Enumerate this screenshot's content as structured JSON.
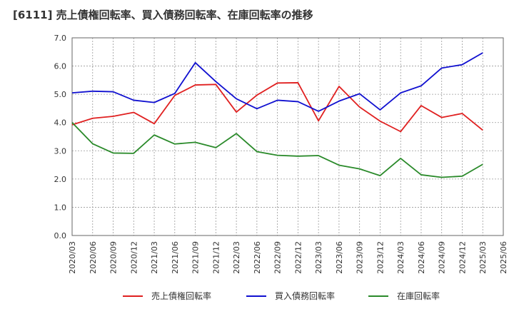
{
  "title": "[6111]  売上債権回転率、買入債務回転率、在庫回転率の推移",
  "chart_data": {
    "type": "line",
    "title": "[6111]  売上債権回転率、買入債務回転率、在庫回転率の推移",
    "xlabel": "",
    "ylabel": "",
    "ylim": [
      0,
      7
    ],
    "yticks": [
      "0.0",
      "1.0",
      "2.0",
      "3.0",
      "4.0",
      "5.0",
      "6.0",
      "7.0"
    ],
    "grid": true,
    "legend_position": "bottom",
    "x": [
      "2020/03",
      "2020/06",
      "2020/09",
      "2020/12",
      "2021/03",
      "2021/06",
      "2021/09",
      "2021/12",
      "2022/03",
      "2022/06",
      "2022/09",
      "2022/12",
      "2023/03",
      "2023/06",
      "2023/09",
      "2023/12",
      "2024/03",
      "2024/06",
      "2024/09",
      "2024/12",
      "2025/03",
      "2025/06"
    ],
    "series": [
      {
        "name": "売上債権回転率",
        "color": "#e02020",
        "values": [
          3.92,
          4.15,
          4.22,
          4.36,
          3.96,
          4.96,
          5.33,
          5.35,
          4.37,
          4.97,
          5.4,
          5.41,
          4.06,
          5.28,
          4.55,
          4.05,
          3.68,
          4.6,
          4.18,
          4.32,
          3.73,
          null
        ]
      },
      {
        "name": "買入債務回転率",
        "color": "#1010d0",
        "values": [
          5.05,
          5.11,
          5.09,
          4.79,
          4.71,
          5.03,
          6.12,
          5.45,
          4.84,
          4.49,
          4.79,
          4.74,
          4.4,
          4.76,
          5.02,
          4.45,
          5.05,
          5.3,
          5.93,
          6.05,
          6.47,
          null
        ]
      },
      {
        "name": "在庫回転率",
        "color": "#2a8a2a",
        "values": [
          4.0,
          3.25,
          2.92,
          2.91,
          3.56,
          3.24,
          3.3,
          3.11,
          3.61,
          2.97,
          2.84,
          2.81,
          2.83,
          2.49,
          2.36,
          2.12,
          2.73,
          2.15,
          2.06,
          2.1,
          2.52,
          null
        ]
      }
    ]
  }
}
